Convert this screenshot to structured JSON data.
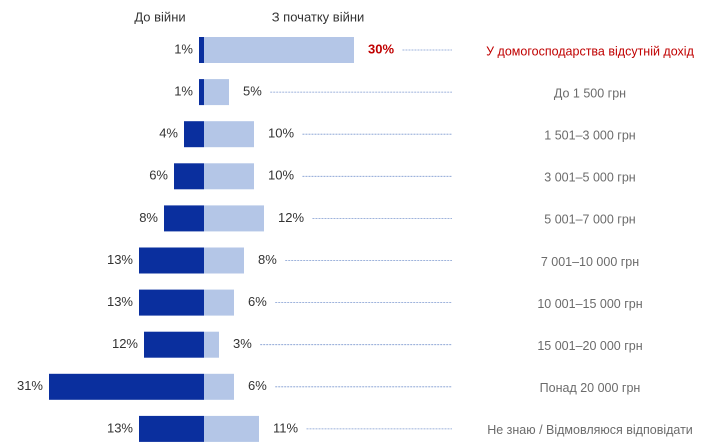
{
  "chart_data": {
    "type": "diverging-bar",
    "categories": [
      "У домогосподарства відсутній дохід",
      "До 1 500 грн",
      "1 501–3 000 грн",
      "3 001–5 000 грн",
      "5 001–7 000 грн",
      "7 001–10 000 грн",
      "10 001–15 000 грн",
      "15 001–20 000 грн",
      "Понад 20 000 грн",
      "Не знаю / Відмовляюся відповідати"
    ],
    "series": [
      {
        "name": "До війни",
        "color": "#0a2f9e",
        "values": [
          1,
          1,
          4,
          6,
          8,
          13,
          13,
          12,
          31,
          13
        ],
        "value_labels": [
          "1%",
          "1%",
          "4%",
          "6%",
          "8%",
          "13%",
          "13%",
          "12%",
          "31%",
          "13%"
        ]
      },
      {
        "name": "З початку війни",
        "color": "#b4c6e7",
        "values": [
          30,
          5,
          10,
          10,
          12,
          8,
          6,
          3,
          6,
          11
        ],
        "value_labels": [
          "30%",
          "5%",
          "10%",
          "10%",
          "12%",
          "8%",
          "6%",
          "3%",
          "6%",
          "11%"
        ]
      }
    ],
    "highlight": {
      "category": 0,
      "color": "#c00000"
    }
  }
}
